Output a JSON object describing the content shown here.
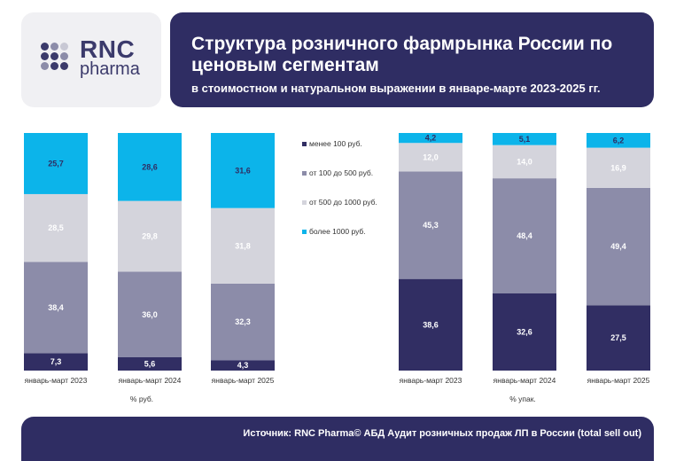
{
  "logo": {
    "line1": "RNC",
    "line2": "pharma"
  },
  "header": {
    "title": "Структура розничного фармрынка России по ценовым сегментам",
    "subtitle": "в стоимостном и натуральном выражении в январе-марте 2023-2025 гг."
  },
  "footer": {
    "source": "Источник: RNC Pharma© АБД Аудит розничных продаж ЛП в России (total sell out)"
  },
  "colors": {
    "navy": "#2f2d63",
    "segment_colors": [
      "#312e63",
      "#8c8ca9",
      "#d4d4dc",
      "#0cb4ea"
    ],
    "segment_text_colors": [
      "#ffffff",
      "#ffffff",
      "#ffffff",
      "#2f2d63"
    ]
  },
  "chart_data": [
    {
      "type": "bar",
      "stacked": true,
      "xlabel": "% руб.",
      "categories": [
        "январь-март 2023",
        "январь-март 2024",
        "январь-март 2025"
      ],
      "ylim": [
        0,
        100
      ],
      "series": [
        {
          "name": "менее 100 руб.",
          "values": [
            7.3,
            5.6,
            4.3
          ],
          "labels": [
            "7,3",
            "5,6",
            "4,3"
          ]
        },
        {
          "name": "от 100 до 500 руб.",
          "values": [
            38.4,
            36.0,
            32.3
          ],
          "labels": [
            "38,4",
            "36,0",
            "32,3"
          ]
        },
        {
          "name": "от 500 до 1000 руб.",
          "values": [
            28.5,
            29.8,
            31.8
          ],
          "labels": [
            "28,5",
            "29,8",
            "31,8"
          ]
        },
        {
          "name": "более 1000 руб.",
          "values": [
            25.7,
            28.6,
            31.6
          ],
          "labels": [
            "25,7",
            "28,6",
            "31,6"
          ]
        }
      ]
    },
    {
      "type": "bar",
      "stacked": true,
      "xlabel": "% упак.",
      "categories": [
        "январь-март 2023",
        "январь-март 2024",
        "январь-март 2025"
      ],
      "ylim": [
        0,
        100
      ],
      "series": [
        {
          "name": "менее 100 руб.",
          "values": [
            38.6,
            32.6,
            27.5
          ],
          "labels": [
            "38,6",
            "32,6",
            "27,5"
          ]
        },
        {
          "name": "от 100 до 500 руб.",
          "values": [
            45.3,
            48.4,
            49.4
          ],
          "labels": [
            "45,3",
            "48,4",
            "49,4"
          ]
        },
        {
          "name": "от 500 до 1000 руб.",
          "values": [
            12.0,
            14.0,
            16.9
          ],
          "labels": [
            "12,0",
            "14,0",
            "16,9"
          ]
        },
        {
          "name": "более 1000 руб.",
          "values": [
            4.2,
            5.1,
            6.2
          ],
          "labels": [
            "4,2",
            "5,1",
            "6,2"
          ]
        }
      ]
    }
  ],
  "legend": {
    "placement": "center",
    "items": [
      "менее 100 руб.",
      "от 100 до 500 руб.",
      "от 500 до 1000 руб.",
      "более 1000 руб."
    ]
  }
}
